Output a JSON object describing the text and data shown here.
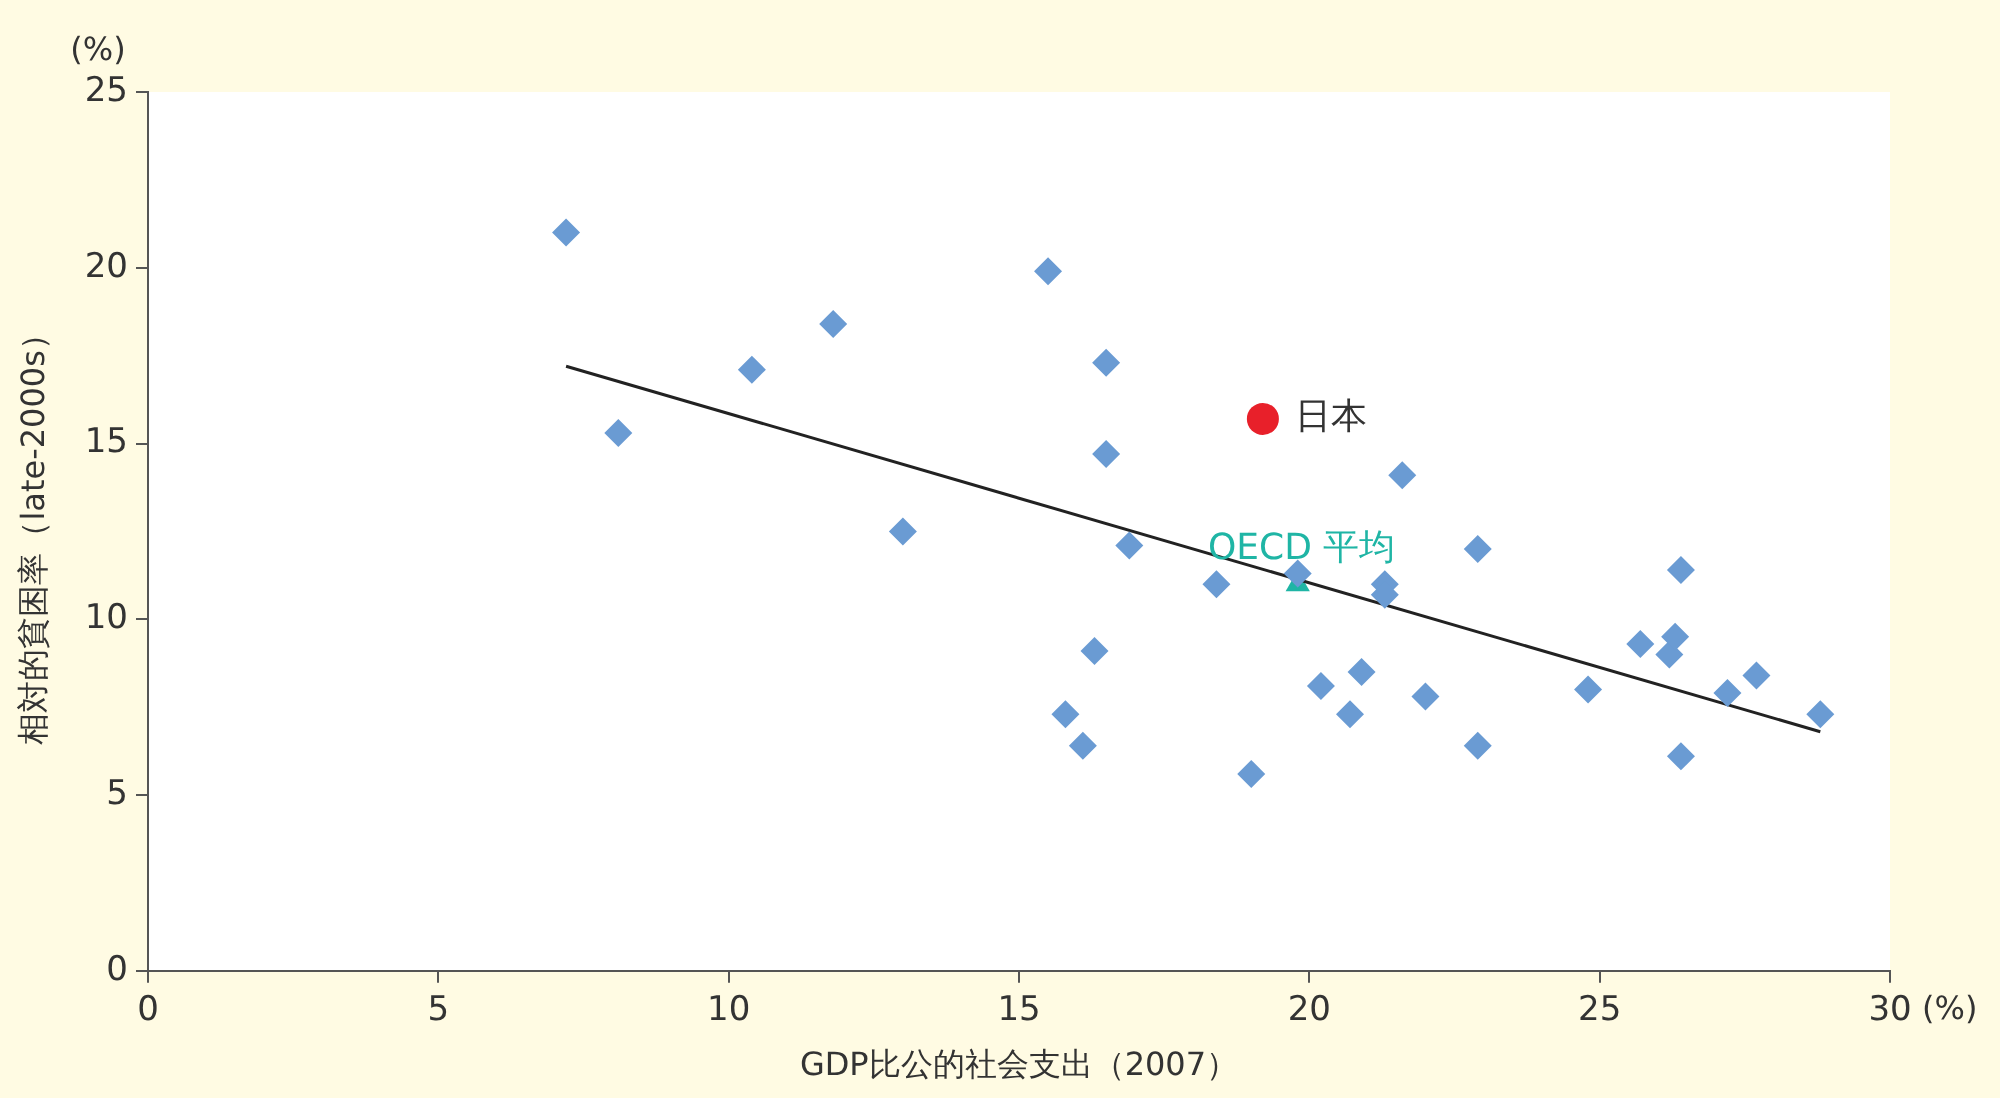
{
  "chart_data": {
    "type": "scatter",
    "xlabel": "GDP比公的社会支出（2007）",
    "ylabel": "相対的貧困率（late-2000s）",
    "annotations": [
      "(%)",
      "(%)"
    ],
    "xlim": [
      0,
      30
    ],
    "xticks": [
      0,
      5,
      10,
      15,
      20,
      25,
      30
    ],
    "ylim": [
      0,
      25
    ],
    "yticks": [
      0,
      5,
      10,
      15,
      20,
      25
    ],
    "grid": false,
    "legend": false,
    "series": [
      {
        "color": "#6a9bd3",
        "marker": "diamond",
        "x": [
          7.2,
          8.1,
          10.4,
          11.8,
          13.0,
          15.5,
          16.5,
          16.5,
          16.9,
          16.3,
          15.8,
          16.1,
          18.4,
          19.0,
          19.8,
          20.2,
          20.9,
          20.7,
          21.3,
          21.3,
          21.6,
          22.0,
          22.9,
          22.9,
          24.8,
          25.7,
          26.2,
          26.3,
          26.4,
          26.4,
          27.2,
          27.7,
          28.8
        ],
        "values": [
          21.0,
          15.3,
          17.1,
          18.4,
          12.5,
          19.9,
          17.3,
          14.7,
          12.1,
          9.1,
          7.3,
          6.4,
          11.0,
          5.6,
          11.3,
          8.1,
          8.5,
          7.3,
          11.0,
          10.7,
          14.1,
          7.8,
          12.0,
          6.4,
          8.0,
          9.3,
          9.0,
          9.5,
          11.4,
          6.1,
          7.9,
          8.4,
          7.3
        ]
      },
      {
        "type": "line",
        "color": "#222222",
        "marker": "none",
        "x": [
          7.2,
          28.8
        ],
        "values": [
          17.2,
          6.8
        ]
      },
      {
        "name": "日本",
        "color": "#e8202a",
        "marker": "circle",
        "x": [
          19.2
        ],
        "values": [
          15.7
        ]
      },
      {
        "name": "OECD 平均",
        "color": "#1fb5a5",
        "marker": "triangle",
        "x": [
          19.8
        ],
        "values": [
          11.0
        ]
      }
    ]
  }
}
